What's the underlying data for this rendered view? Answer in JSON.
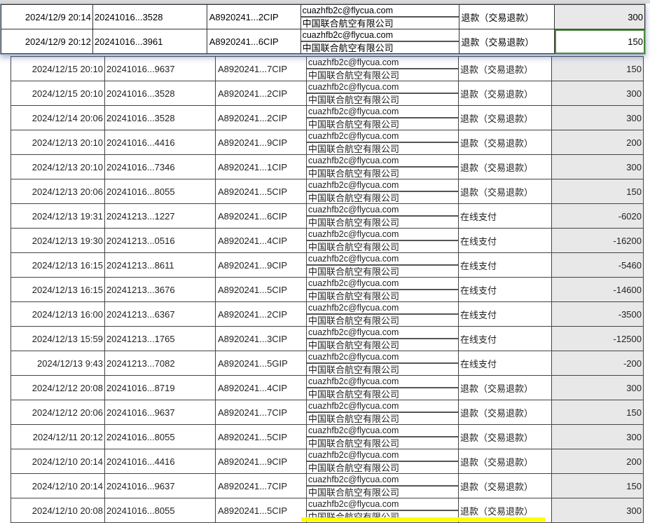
{
  "floating_rows": [
    {
      "time": "2024/12/9 20:14",
      "order": "20241016...3528",
      "ticket": "A8920241...2CIP",
      "email": "cuazhfb2c@flycua.com",
      "company": "中国联合航空有限公司",
      "type": "退款（交易退款）",
      "amount": "300"
    },
    {
      "time": "2024/12/9 20:12",
      "order": "20241016...3961",
      "ticket": "A8920241...6CIP",
      "email": "cuazhfb2c@flycua.com",
      "company": "中国联合航空有限公司",
      "type": "退款（交易退款）",
      "amount": "150"
    }
  ],
  "rows": [
    {
      "time": "2024/12/15 20:10",
      "order": "20241016...9637",
      "ticket": "A8920241...7CIP",
      "email": "cuazhfb2c@flycua.com",
      "company": "中国联合航空有限公司",
      "type": "退款（交易退款）",
      "amount": "150"
    },
    {
      "time": "2024/12/15 20:10",
      "order": "20241016...3528",
      "ticket": "A8920241...2CIP",
      "email": "cuazhfb2c@flycua.com",
      "company": "中国联合航空有限公司",
      "type": "退款（交易退款）",
      "amount": "300"
    },
    {
      "time": "2024/12/14 20:06",
      "order": "20241016...3528",
      "ticket": "A8920241...2CIP",
      "email": "cuazhfb2c@flycua.com",
      "company": "中国联合航空有限公司",
      "type": "退款（交易退款）",
      "amount": "300"
    },
    {
      "time": "2024/12/13 20:10",
      "order": "20241016...4416",
      "ticket": "A8920241...9CIP",
      "email": "cuazhfb2c@flycua.com",
      "company": "中国联合航空有限公司",
      "type": "退款（交易退款）",
      "amount": "200"
    },
    {
      "time": "2024/12/13 20:10",
      "order": "20241016...7346",
      "ticket": "A8920241...1CIP",
      "email": "cuazhfb2c@flycua.com",
      "company": "中国联合航空有限公司",
      "type": "退款（交易退款）",
      "amount": "300"
    },
    {
      "time": "2024/12/13 20:06",
      "order": "20241016...8055",
      "ticket": "A8920241...5CIP",
      "email": "cuazhfb2c@flycua.com",
      "company": "中国联合航空有限公司",
      "type": "退款（交易退款）",
      "amount": "150"
    },
    {
      "time": "2024/12/13 19:31",
      "order": "20241213...1227",
      "ticket": "A8920241...6CIP",
      "email": "cuazhfb2c@flycua.com",
      "company": "中国联合航空有限公司",
      "type": "在线支付",
      "amount": "-6020"
    },
    {
      "time": "2024/12/13 19:30",
      "order": "20241213...0516",
      "ticket": "A8920241...4CIP",
      "email": "cuazhfb2c@flycua.com",
      "company": "中国联合航空有限公司",
      "type": "在线支付",
      "amount": "-16200"
    },
    {
      "time": "2024/12/13 16:15",
      "order": "20241213...8611",
      "ticket": "A8920241...9CIP",
      "email": "cuazhfb2c@flycua.com",
      "company": "中国联合航空有限公司",
      "type": "在线支付",
      "amount": "-5460"
    },
    {
      "time": "2024/12/13 16:15",
      "order": "20241213...3676",
      "ticket": "A8920241...5CIP",
      "email": "cuazhfb2c@flycua.com",
      "company": "中国联合航空有限公司",
      "type": "在线支付",
      "amount": "-14600"
    },
    {
      "time": "2024/12/13 16:00",
      "order": "20241213...6367",
      "ticket": "A8920241...2CIP",
      "email": "cuazhfb2c@flycua.com",
      "company": "中国联合航空有限公司",
      "type": "在线支付",
      "amount": "-3500"
    },
    {
      "time": "2024/12/13 15:59",
      "order": "20241213...1765",
      "ticket": "A8920241...3CIP",
      "email": "cuazhfb2c@flycua.com",
      "company": "中国联合航空有限公司",
      "type": "在线支付",
      "amount": "-12500"
    },
    {
      "time": "2024/12/13 9:43",
      "order": "20241213...7082",
      "ticket": "A8920241...5GIP",
      "email": "cuazhfb2c@flycua.com",
      "company": "中国联合航空有限公司",
      "type": "在线支付",
      "amount": "-200"
    },
    {
      "time": "2024/12/12 20:08",
      "order": "20241016...8719",
      "ticket": "A8920241...4CIP",
      "email": "cuazhfb2c@flycua.com",
      "company": "中国联合航空有限公司",
      "type": "退款（交易退款）",
      "amount": "300"
    },
    {
      "time": "2024/12/12 20:06",
      "order": "20241016...9637",
      "ticket": "A8920241...7CIP",
      "email": "cuazhfb2c@flycua.com",
      "company": "中国联合航空有限公司",
      "type": "退款（交易退款）",
      "amount": "150"
    },
    {
      "time": "2024/12/11 20:12",
      "order": "20241016...8055",
      "ticket": "A8920241...5CIP",
      "email": "cuazhfb2c@flycua.com",
      "company": "中国联合航空有限公司",
      "type": "退款（交易退款）",
      "amount": "300"
    },
    {
      "time": "2024/12/10 20:14",
      "order": "20241016...4416",
      "ticket": "A8920241...9CIP",
      "email": "cuazhfb2c@flycua.com",
      "company": "中国联合航空有限公司",
      "type": "退款（交易退款）",
      "amount": "200"
    },
    {
      "time": "2024/12/10 20:14",
      "order": "20241016...9637",
      "ticket": "A8920241...7CIP",
      "email": "cuazhfb2c@flycua.com",
      "company": "中国联合航空有限公司",
      "type": "退款（交易退款）",
      "amount": "150"
    },
    {
      "time": "2024/12/10 20:08",
      "order": "20241016...8055",
      "ticket": "A8920241...5CIP",
      "email": "cuazhfb2c@flycua.com",
      "company": "中国联合航空有限公司",
      "type": "退款（交易退款）",
      "amount": "300"
    }
  ]
}
